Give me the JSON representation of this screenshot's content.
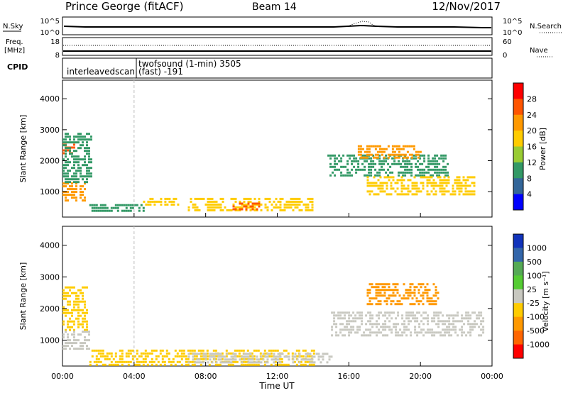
{
  "header": {
    "station": "Prince George (fitACF)",
    "beam": "Beam 14",
    "date": "12/Nov/2017"
  },
  "top_panels": {
    "nsky_label": "N.Sky",
    "nsearch_label": "N.Search",
    "noise_ticks_left": [
      "10^5",
      "10^0"
    ],
    "noise_ticks_right": [
      "10^5",
      "10^0"
    ],
    "freq_label_1": "Freq.",
    "freq_label_2": "[MHz]",
    "freq_ticks_left": [
      "18",
      "8"
    ],
    "nave_label": "Nave",
    "nave_ticks_right": [
      "60",
      "0"
    ],
    "cpid_label": "CPID",
    "cpid_1": "interleavedscan",
    "cpid_2a": "twofsound (1-min) 3505",
    "cpid_2b": "(fast) -191"
  },
  "time_axis": {
    "title": "Time UT",
    "ticks": [
      "00:00",
      "04:00",
      "08:00",
      "12:00",
      "16:00",
      "20:00",
      "00:00"
    ]
  },
  "power_colorbar": {
    "label": "Power [dB]",
    "ticks": [
      "28",
      "24",
      "20",
      "16",
      "12",
      "8",
      "4"
    ],
    "colors": [
      "#ff0000",
      "#ff5500",
      "#ff9900",
      "#ffcc00",
      "#99cc33",
      "#339966",
      "#336699",
      "#0000ff"
    ]
  },
  "velocity_colorbar": {
    "label": "Velocity [m s⁻¹]",
    "ticks": [
      "1000",
      "500",
      "100",
      "25",
      "-25",
      "-100",
      "-500",
      "-1000"
    ],
    "colors": [
      "#1133bb",
      "#3366aa",
      "#55aa55",
      "#55cc33",
      "#c8c8c0",
      "#ffcc00",
      "#ff9900",
      "#ff6600",
      "#ff0000"
    ]
  },
  "chart_data": [
    {
      "type": "heatmap",
      "title": "",
      "xlabel": "Time UT",
      "ylabel": "Slant Range [km]",
      "xlim": [
        0,
        24
      ],
      "ylim": [
        180,
        4600
      ],
      "yticks": [
        "1000",
        "2000",
        "3000",
        "4000"
      ],
      "zlabel": "Power [dB]",
      "regions": [
        {
          "t0": 0.0,
          "t1": 0.6,
          "r0": 2200,
          "r1": 2550,
          "value": 26
        },
        {
          "t0": 0.0,
          "t1": 1.3,
          "r0": 700,
          "r1": 1300,
          "value": 24
        },
        {
          "t0": 0.0,
          "t1": 1.6,
          "r0": 1300,
          "r1": 2900,
          "value": 10
        },
        {
          "t0": 1.5,
          "t1": 4.5,
          "r0": 400,
          "r1": 600,
          "value": 10
        },
        {
          "t0": 4.5,
          "t1": 6.5,
          "r0": 600,
          "r1": 800,
          "value": 18
        },
        {
          "t0": 7.0,
          "t1": 14.0,
          "r0": 350,
          "r1": 800,
          "value": 18
        },
        {
          "t0": 9.5,
          "t1": 11.0,
          "r0": 400,
          "r1": 650,
          "value": 26
        },
        {
          "t0": 14.8,
          "t1": 21.5,
          "r0": 1500,
          "r1": 2200,
          "value": 12
        },
        {
          "t0": 16.5,
          "t1": 20.0,
          "r0": 2100,
          "r1": 2500,
          "value": 22
        },
        {
          "t0": 17.0,
          "t1": 23.0,
          "r0": 900,
          "r1": 1500,
          "value": 20
        }
      ]
    },
    {
      "type": "heatmap",
      "title": "",
      "xlabel": "Time UT",
      "ylabel": "Slant Range [km]",
      "xlim": [
        0,
        24
      ],
      "ylim": [
        180,
        4600
      ],
      "yticks": [
        "1000",
        "2000",
        "3000",
        "4000"
      ],
      "zlabel": "Velocity [m s⁻¹]",
      "regions": [
        {
          "t0": 0.0,
          "t1": 1.4,
          "r0": 1300,
          "r1": 2700,
          "value": -100
        },
        {
          "t0": 0.0,
          "t1": 1.5,
          "r0": 700,
          "r1": 1300,
          "value": 0
        },
        {
          "t0": 1.5,
          "t1": 14.0,
          "r0": 250,
          "r1": 700,
          "value": -100
        },
        {
          "t0": 7.0,
          "t1": 15.0,
          "r0": 250,
          "r1": 600,
          "value": 0
        },
        {
          "t0": 15.0,
          "t1": 23.5,
          "r0": 1100,
          "r1": 1900,
          "value": 0
        },
        {
          "t0": 17.0,
          "t1": 21.0,
          "r0": 2100,
          "r1": 2800,
          "value": -500
        }
      ]
    }
  ]
}
